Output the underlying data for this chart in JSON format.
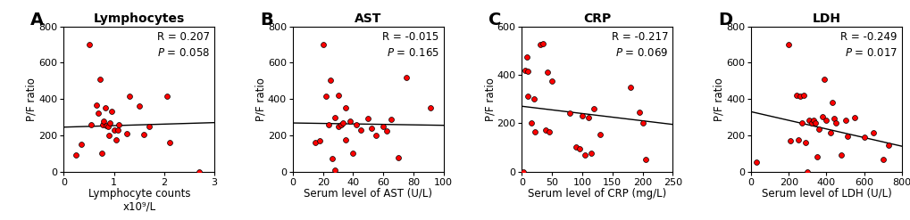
{
  "panels": [
    {
      "label": "A",
      "title": "Lymphocytes",
      "xlabel": "Lymphocyte counts\nx10⁹/L",
      "ylabel": "P/F ratio",
      "R_text": "R = 0.207",
      "P_text": "P = 0.058",
      "xlim": [
        0,
        3
      ],
      "ylim": [
        0,
        800
      ],
      "xticks": [
        0,
        1,
        2,
        3
      ],
      "yticks": [
        0,
        200,
        400,
        600,
        800
      ],
      "line_x": [
        0,
        3
      ],
      "line_y": [
        245,
        270
      ],
      "x": [
        0.25,
        0.35,
        0.5,
        0.55,
        0.65,
        0.68,
        0.72,
        0.75,
        0.78,
        0.8,
        0.82,
        0.85,
        0.88,
        0.9,
        0.92,
        0.95,
        1.0,
        1.05,
        1.08,
        1.1,
        1.25,
        1.3,
        1.5,
        1.6,
        1.7,
        2.05,
        2.1,
        2.7
      ],
      "y": [
        90,
        150,
        700,
        260,
        365,
        320,
        510,
        100,
        260,
        280,
        350,
        255,
        250,
        200,
        270,
        330,
        230,
        175,
        230,
        260,
        210,
        415,
        360,
        205,
        250,
        415,
        160,
        0
      ]
    },
    {
      "label": "B",
      "title": "AST",
      "xlabel": "Serum level of AST (U/L)",
      "ylabel": "P/F ratio",
      "R_text": "R = -0.015",
      "P_text": "P = 0.165",
      "xlim": [
        0,
        100
      ],
      "ylim": [
        0,
        800
      ],
      "xticks": [
        0,
        20,
        40,
        60,
        80,
        100
      ],
      "yticks": [
        0,
        200,
        400,
        600,
        800
      ],
      "line_x": [
        0,
        100
      ],
      "line_y": [
        268,
        255
      ],
      "x": [
        15,
        18,
        20,
        22,
        24,
        25,
        26,
        28,
        28,
        30,
        30,
        32,
        33,
        35,
        35,
        38,
        40,
        42,
        45,
        50,
        52,
        55,
        60,
        62,
        65,
        70,
        75,
        91
      ],
      "y": [
        160,
        170,
        700,
        415,
        260,
        505,
        70,
        300,
        10,
        250,
        420,
        260,
        270,
        350,
        175,
        280,
        100,
        260,
        230,
        295,
        240,
        200,
        250,
        225,
        290,
        75,
        520,
        350
      ]
    },
    {
      "label": "C",
      "title": "CRP",
      "xlabel": "Serum level of CRP (mg/L)",
      "ylabel": "P/F ratio",
      "R_text": "R = -0.217",
      "P_text": "P = 0.069",
      "xlim": [
        0,
        250
      ],
      "ylim": [
        0,
        600
      ],
      "xticks": [
        0,
        50,
        100,
        150,
        200,
        250
      ],
      "yticks": [
        0,
        200,
        400,
        600
      ],
      "line_x": [
        0,
        250
      ],
      "line_y": [
        270,
        195
      ],
      "x": [
        2,
        5,
        8,
        10,
        10,
        15,
        20,
        22,
        30,
        35,
        40,
        42,
        45,
        50,
        80,
        90,
        95,
        100,
        105,
        110,
        115,
        120,
        130,
        180,
        195,
        200,
        205
      ],
      "y": [
        0,
        420,
        475,
        310,
        415,
        200,
        300,
        165,
        525,
        530,
        170,
        410,
        165,
        375,
        240,
        100,
        95,
        230,
        70,
        225,
        75,
        260,
        155,
        350,
        245,
        200,
        50
      ]
    },
    {
      "label": "D",
      "title": "LDH",
      "xlabel": "Serum level of LDH (U/L)",
      "ylabel": "P/F ratio",
      "R_text": "R = -0.249",
      "P_text": "P = 0.017",
      "xlim": [
        0,
        800
      ],
      "ylim": [
        0,
        800
      ],
      "xticks": [
        0,
        200,
        400,
        600,
        800
      ],
      "yticks": [
        0,
        200,
        400,
        600,
        800
      ],
      "line_x": [
        0,
        800
      ],
      "line_y": [
        330,
        140
      ],
      "x": [
        30,
        200,
        210,
        240,
        250,
        260,
        270,
        280,
        290,
        300,
        310,
        320,
        330,
        340,
        350,
        360,
        380,
        390,
        400,
        420,
        430,
        440,
        450,
        480,
        500,
        510,
        550,
        600,
        650,
        700,
        730
      ],
      "y": [
        50,
        700,
        170,
        420,
        175,
        415,
        270,
        420,
        160,
        0,
        285,
        270,
        285,
        270,
        80,
        235,
        305,
        510,
        285,
        215,
        380,
        295,
        270,
        90,
        285,
        195,
        300,
        190,
        215,
        65,
        145
      ]
    }
  ],
  "dot_color": "#FF0000",
  "dot_edgecolor": "#000000",
  "background": "#FFFFFF",
  "line_color": "#000000",
  "fontsize_title": 10,
  "fontsize_label": 8.5,
  "fontsize_tick": 8,
  "fontsize_annot": 8.5,
  "fontsize_panel_label": 14
}
